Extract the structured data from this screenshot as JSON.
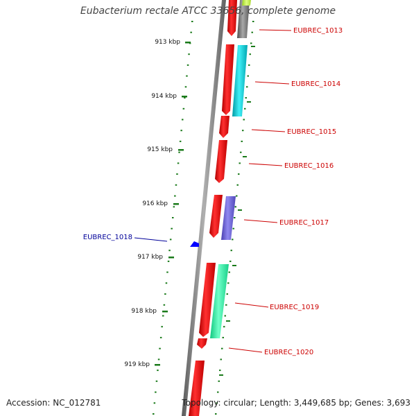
{
  "title": "Eubacterium rectale ATCC 33656, complete genome",
  "accession_text": "Accession: NC_012781",
  "summary_text": "Topology: circular; Length: 3,449,685 bp; Genes: 3,693",
  "colors": {
    "backbone": "#808080",
    "ruler_tick": "#1a7a1a",
    "gene_red": "#ff0000",
    "label_red": "#cc0000",
    "label_blue": "#000099",
    "cog_cyan": "#00c8d2",
    "cog_gray": "#707070",
    "cog_yellow_green": "#c8ff3c",
    "cog_purple": "#6e64dc",
    "cog_seafoam": "#28f0a0",
    "blue_marker": "#0000ff"
  },
  "ruler": {
    "unit": "kbp",
    "labels": [
      "913 kbp",
      "914 kbp",
      "915 kbp",
      "916 kbp",
      "917 kbp",
      "918 kbp",
      "919 kbp"
    ]
  },
  "genes": [
    {
      "label": "EUBREC_1013",
      "strand": "forward",
      "cog_color": "cog_gray"
    },
    {
      "label": "EUBREC_1014",
      "strand": "forward",
      "cog_color": "cog_cyan"
    },
    {
      "label": "EUBREC_1015",
      "strand": "forward",
      "cog_color": null
    },
    {
      "label": "EUBREC_1016",
      "strand": "forward",
      "cog_color": null
    },
    {
      "label": "EUBREC_1017",
      "strand": "forward",
      "cog_color": "cog_purple"
    },
    {
      "label": "EUBREC_1018",
      "strand": "reverse",
      "cog_color": null
    },
    {
      "label": "EUBREC_1019",
      "strand": "forward",
      "cog_color": "cog_seafoam"
    },
    {
      "label": "EUBREC_1020",
      "strand": "forward",
      "cog_color": null
    }
  ]
}
